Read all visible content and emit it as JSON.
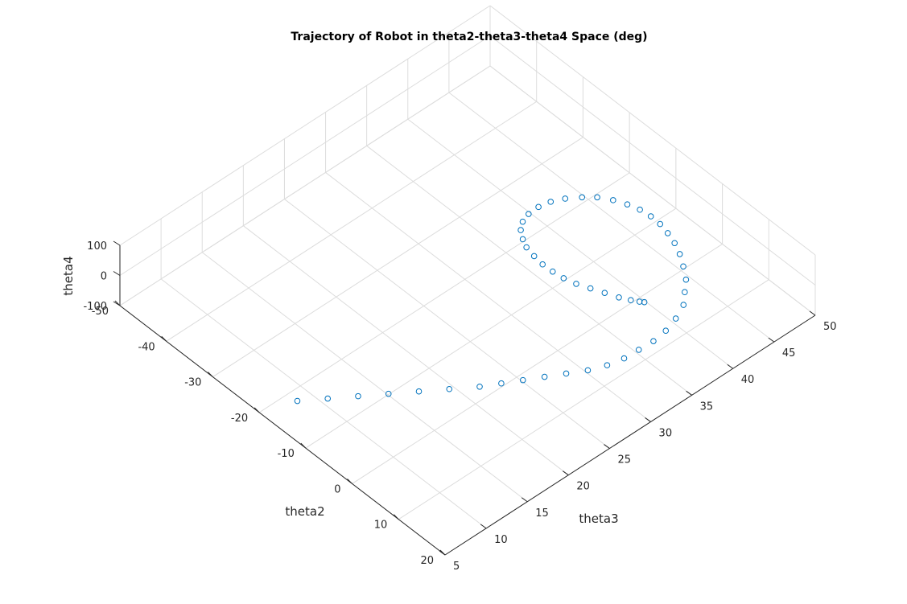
{
  "chart_data": {
    "type": "scatter",
    "title": "Trajectory of Robot in theta2-theta3-theta4 Space (deg)",
    "xlabel": "theta2",
    "ylabel": "theta3",
    "zlabel": "theta4",
    "xlim": [
      -50,
      20
    ],
    "ylim": [
      5,
      50
    ],
    "zlim": [
      -100,
      100
    ],
    "x_ticks": [
      "-50",
      "-40",
      "-30",
      "-20",
      "-10",
      "0",
      "10",
      "20"
    ],
    "y_ticks": [
      "5",
      "10",
      "15",
      "20",
      "25",
      "30",
      "35",
      "40",
      "45",
      "50"
    ],
    "z_ticks": [
      "-100",
      "0",
      "100"
    ],
    "grid": true,
    "marker": "circle",
    "marker_color": "#0072BD",
    "series": [
      {
        "x": [
          -18,
          -15,
          -12,
          -9,
          -6,
          -3,
          0,
          2,
          4,
          6,
          8,
          10,
          11.5,
          12.5,
          13,
          13.5,
          13.5,
          13,
          12,
          10.5,
          9,
          7,
          5,
          3,
          1,
          -1,
          -3,
          -5,
          -7,
          -9,
          -11,
          -12.5,
          -14,
          -15,
          -15.5,
          -15.5,
          -15,
          -14,
          -12.5,
          -11,
          -9,
          -7,
          -5,
          -3,
          -1,
          1,
          3,
          5,
          6.5,
          7.5,
          8
        ],
        "y": [
          8.5,
          10.5,
          12.5,
          14.5,
          16.5,
          18.5,
          20.5,
          22,
          23.5,
          25,
          26.5,
          28,
          29.5,
          31,
          32.5,
          34,
          35.5,
          37,
          38.5,
          39.5,
          40.5,
          41.3,
          42,
          42.5,
          42.8,
          43,
          43,
          42.8,
          42.4,
          41.8,
          41,
          40,
          38.8,
          37.6,
          36.4,
          35.2,
          34.2,
          33.4,
          32.8,
          32.4,
          32.2,
          32.1,
          32.2,
          32.4,
          32.8,
          33.4,
          34,
          34.6,
          35.2,
          35.7,
          36
        ],
        "z": [
          -100,
          -92,
          -84,
          -76,
          -68,
          -60,
          -52,
          -44,
          -36,
          -28,
          -20,
          -12,
          -4,
          4,
          12,
          20,
          28,
          36,
          43,
          50,
          56,
          62,
          67,
          71,
          75,
          78,
          80,
          82,
          83,
          84,
          84,
          84,
          83,
          82,
          80,
          78,
          76,
          74,
          72,
          70,
          68,
          66,
          64,
          62,
          60,
          58,
          56,
          54,
          52,
          50,
          49
        ]
      }
    ]
  }
}
